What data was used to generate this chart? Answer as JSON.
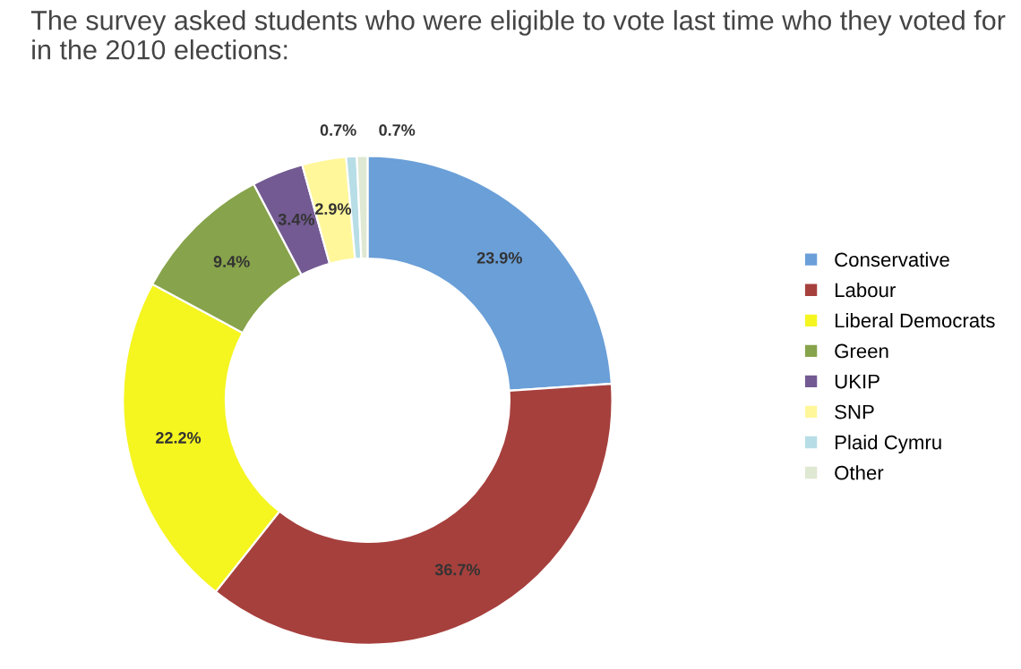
{
  "chart_data": {
    "type": "donut",
    "title": "The survey asked students who were eligible to vote last time who they voted for in the 2010 elections:",
    "categories": [
      "Conservative",
      "Labour",
      "Liberal Democrats",
      "Green",
      "UKIP",
      "SNP",
      "Plaid Cymru",
      "Other"
    ],
    "values": [
      23.9,
      36.7,
      22.2,
      9.4,
      3.4,
      2.9,
      0.7,
      0.7
    ],
    "value_labels": [
      "23.9%",
      "36.7%",
      "22.2%",
      "9.4%",
      "3.4%",
      "2.9%",
      "0.7%",
      "0.7%"
    ],
    "colors": [
      "#6a9fd8",
      "#a6403d",
      "#f5f520",
      "#87a34b",
      "#735a92",
      "#fff79a",
      "#b7dde6",
      "#dfe8d2"
    ],
    "legend": "right"
  }
}
